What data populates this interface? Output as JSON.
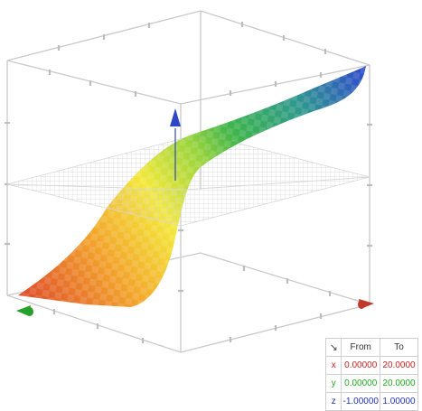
{
  "graph": {
    "colors": {
      "box": "#c9c9c9",
      "plane_grid": "#d4d4d4",
      "x_axis_arrow": "#c0392b",
      "y_axis_arrow": "#27a02a",
      "z_axis_arrow": "#2f46c8"
    },
    "surface_gradient": [
      "#e0502a",
      "#f3a52c",
      "#f4e83b",
      "#9ad43c",
      "#3fb54a",
      "#2f9a8c",
      "#2f4fc9"
    ]
  },
  "range_table": {
    "corner_icon": "arrow-down-right-icon",
    "corner_glyph": "↘",
    "header_from": "From",
    "header_to": "To",
    "rows": [
      {
        "axis": "x",
        "from": "0.00000",
        "to": "20.0000",
        "color": "#cc2222"
      },
      {
        "axis": "y",
        "from": "0.00000",
        "to": "20.0000",
        "color": "#22aa22"
      },
      {
        "axis": "z",
        "from": "-1.00000",
        "to": "1.00000",
        "color": "#2233bb"
      }
    ]
  }
}
